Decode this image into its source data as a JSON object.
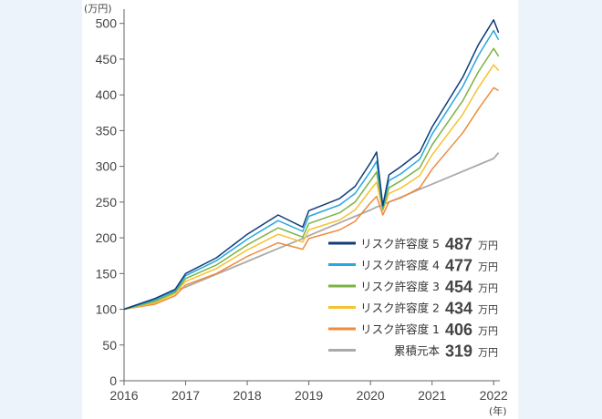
{
  "chart_data": {
    "type": "line",
    "title": "",
    "xlabel": "",
    "ylabel": "",
    "y_unit_label": "(万円)",
    "x_unit_label": "(年)",
    "ylim": [
      0,
      520
    ],
    "yticks": [
      "0",
      "50",
      "100",
      "150",
      "200",
      "250",
      "300",
      "350",
      "400",
      "450",
      "500"
    ],
    "xlim": [
      2016,
      2022.1
    ],
    "xticks": [
      "2016",
      "2017",
      "2018",
      "2019",
      "2020",
      "2021",
      "2022"
    ],
    "grid": false,
    "legend_position": "bottom-right",
    "x": [
      2016.0,
      2016.5,
      2016.83,
      2017.0,
      2017.5,
      2018.0,
      2018.5,
      2018.9,
      2019.0,
      2019.5,
      2019.75,
      2020.0,
      2020.1,
      2020.2,
      2020.3,
      2020.5,
      2020.8,
      2021.0,
      2021.5,
      2021.75,
      2022.0,
      2022.08
    ],
    "series": [
      {
        "name": "リスク許容度 5",
        "value": "487",
        "unit": "万円",
        "color": "#0d3d7a",
        "values": [
          100,
          115,
          128,
          150,
          172,
          205,
          232,
          215,
          238,
          255,
          272,
          305,
          320,
          245,
          288,
          300,
          320,
          355,
          425,
          470,
          505,
          487
        ]
      },
      {
        "name": "リスク許容度 4",
        "value": "477",
        "unit": "万円",
        "color": "#2aa7dc",
        "values": [
          100,
          113,
          126,
          147,
          168,
          198,
          224,
          209,
          230,
          246,
          262,
          293,
          307,
          242,
          280,
          290,
          310,
          345,
          412,
          455,
          490,
          477
        ]
      },
      {
        "name": "リスク許容度 3",
        "value": "454",
        "unit": "万円",
        "color": "#7bb342",
        "values": [
          100,
          111,
          124,
          143,
          162,
          190,
          214,
          201,
          220,
          235,
          250,
          280,
          292,
          240,
          270,
          280,
          298,
          330,
          392,
          432,
          465,
          454
        ]
      },
      {
        "name": "リスク許容度 2",
        "value": "434",
        "unit": "万円",
        "color": "#f6c231",
        "values": [
          100,
          109,
          122,
          139,
          157,
          183,
          205,
          194,
          211,
          225,
          239,
          267,
          278,
          238,
          262,
          270,
          287,
          316,
          373,
          410,
          442,
          434
        ]
      },
      {
        "name": "リスク許容度 1",
        "value": "406",
        "unit": "万円",
        "color": "#f08a3c",
        "values": [
          100,
          107,
          119,
          134,
          150,
          174,
          193,
          184,
          199,
          211,
          223,
          249,
          258,
          232,
          250,
          256,
          270,
          296,
          347,
          380,
          410,
          406
        ]
      },
      {
        "name": "累積元本",
        "value": "319",
        "unit": "万円",
        "color": "#aaaaaa",
        "values": [
          100,
          115,
          126,
          131,
          149,
          167,
          185,
          199,
          203,
          221,
          230,
          239,
          243,
          246,
          250,
          257,
          268,
          275,
          293,
          302,
          311,
          319
        ]
      }
    ]
  }
}
